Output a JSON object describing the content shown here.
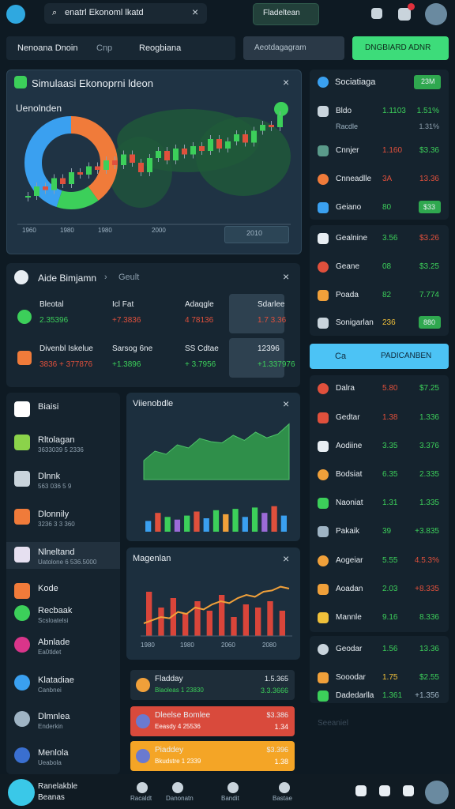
{
  "top_bar": {
    "search": "enatrl Ekonoml lkatd",
    "button": "Fladeltean"
  },
  "tabs": {
    "items": [
      "Nenoana Dnoin",
      "Cnp",
      "Reogbiana"
    ],
    "input": "Aeotdagagram",
    "button": "DNGBIARD ADNR"
  },
  "main_panel": {
    "title": "Simulaasi Ekonoprni ldeon",
    "subtitle": "Uenolnden",
    "donut": {
      "values": [
        40,
        15,
        45
      ],
      "colors": [
        "#f07b3a",
        "#3ccf5a",
        "#3aa0f0"
      ]
    },
    "candles": {
      "values": [
        20,
        28,
        25,
        35,
        30,
        40,
        38,
        45,
        42,
        50,
        46,
        55,
        48,
        40,
        52,
        58,
        50,
        60,
        55,
        62,
        58,
        68,
        60,
        66,
        72,
        65,
        75,
        80,
        78,
        88
      ],
      "ylim": [
        0,
        100
      ],
      "up_color": "#3ccf5a",
      "down_color": "#e0503c"
    },
    "x_labels": [
      "1960",
      "1980",
      "1980",
      "2000"
    ],
    "button": "2010"
  },
  "market_panel": {
    "title": "Aide Bimjamn",
    "tab": "Geult",
    "cells": [
      {
        "name": "Bleotal",
        "value": "2.35396",
        "color": "#3ccf5a"
      },
      {
        "name": "Icl Fat",
        "value": "+7.3836",
        "color": "#e0503c"
      },
      {
        "name": "Adaqgle",
        "value": "4 78136",
        "color": "#e0503c"
      },
      {
        "name": "Sdarlee",
        "value": "1.7 3.36",
        "color": "#e0503c"
      },
      {
        "name": "Divenbl Iskelue",
        "value": "3836 + 377876",
        "color": "#e0503c"
      },
      {
        "name": "Sarsog 6ne",
        "value": "+1.3896",
        "color": "#3ccf5a"
      },
      {
        "name": "SS Cdtae",
        "value": "+ 3.7956",
        "color": "#3ccf5a"
      },
      {
        "name": "12396",
        "value": "+1.337976",
        "color": "#3ccf5a"
      }
    ]
  },
  "left_list": [
    {
      "title": "Biaisi",
      "color": "#ffffff"
    },
    {
      "title": "Rltolagan",
      "sub": "3633039 5 2336",
      "color": "#8bd34a"
    },
    {
      "title": "Dlnnk",
      "sub": "563 036 5 9",
      "color": "#c9d4dc"
    },
    {
      "title": "Dlonnily",
      "sub": "3236 3 3 360",
      "color": "#f07b3a"
    },
    {
      "title": "Nlneltand",
      "sub": "Uatolone 6 536.5000",
      "color": "#e6e0f0"
    },
    {
      "title": "Kode",
      "color": "#f07b3a"
    },
    {
      "title": "Recbaak",
      "sub": "Scsloatelsi",
      "color": "#3ccf5a"
    },
    {
      "title": "Abnlade",
      "sub": "Ea0tldet",
      "color": "#d9358a"
    },
    {
      "title": "Klatadiae",
      "sub": "Canbnei",
      "color": "#3aa0f0"
    },
    {
      "title": "Dlmnlea",
      "sub": "Enderkin",
      "color": "#9fb4c4"
    },
    {
      "title": "Menlola",
      "sub": "Ueabola",
      "color": "#3a6fd0"
    }
  ],
  "area_panel": {
    "title": "Viienobdle",
    "area": {
      "values": [
        30,
        45,
        40,
        55,
        50,
        65,
        60,
        58,
        70,
        62,
        75,
        66,
        72,
        88
      ],
      "ylim": [
        0,
        100
      ],
      "color": "#2f8f4a"
    },
    "bars": {
      "values": [
        40,
        70,
        55,
        45,
        60,
        75,
        50,
        80,
        65,
        85,
        55,
        90,
        70,
        95,
        60
      ],
      "ylim": [
        0,
        100
      ],
      "colors": [
        "#3aa0f0",
        "#e0503c",
        "#3ccf5a",
        "#9b6bd8",
        "#3ccf5a",
        "#e0503c",
        "#3aa0f0",
        "#3ccf5a",
        "#f0a03a",
        "#3ccf5a",
        "#3aa0f0",
        "#3ccf5a",
        "#9b6bd8",
        "#e0503c",
        "#3aa0f0"
      ]
    }
  },
  "line_panel": {
    "title": "Magenlan",
    "line": {
      "values": [
        20,
        25,
        30,
        28,
        38,
        35,
        45,
        42,
        50,
        55,
        52,
        60,
        65,
        62,
        70,
        72,
        78,
        75
      ],
      "ylim": [
        0,
        100
      ],
      "color": "#f0a03a"
    },
    "spikes": {
      "values": [
        70,
        45,
        60,
        35,
        55,
        40,
        65,
        30,
        50,
        45,
        55,
        40
      ],
      "ylim": [
        0,
        100
      ],
      "color": "#d9453a"
    },
    "x_labels": [
      "1980",
      "1980",
      "2060",
      "2080"
    ]
  },
  "cards": [
    {
      "title": "Fladday",
      "sub": "Blaoleas 1 23830",
      "v1": "1.5.365",
      "v2": "3.3.3666",
      "color": "#1e2d39"
    },
    {
      "title": "Dleelse Bomlee",
      "sub": "Eeasdy 4 25536",
      "v1": "$3.386",
      "v2": "1.34",
      "color": "#d94a3c"
    },
    {
      "title": "Piaddey",
      "sub": "Bkudstre 1 2339",
      "v1": "$3.396",
      "v2": "1.38",
      "color": "#f4a526"
    }
  ],
  "right_column": {
    "title": "Sociatiaga",
    "badge": "23M",
    "highlight": {
      "name": "Ca",
      "label": "PADICANBEN"
    },
    "items": [
      {
        "name": "Bldo",
        "v1": "1.1103",
        "v2": "1.51%",
        "c1": "#3ccf5a",
        "c2": "#3ccf5a",
        "sub": "Racdle",
        "sub_value": "1.31%"
      },
      {
        "name": "Cnnjer",
        "v1": "1.160",
        "v2": "$3.36",
        "c1": "#e0503c",
        "c2": "#3ccf5a"
      },
      {
        "name": "Cnneadlle",
        "v1": "3A",
        "v2": "13.36",
        "c1": "#e0503c",
        "c2": "#e0503c"
      },
      {
        "name": "Geiano",
        "v1": "80",
        "badge": "$33",
        "c1": "#3ccf5a"
      },
      {
        "name": "Gealnine",
        "v1": "3.56",
        "v2": "$3.26",
        "c1": "#3ccf5a",
        "c2": "#e0503c"
      },
      {
        "name": "Geane",
        "v1": "08",
        "v2": "$3.25",
        "c1": "#3ccf5a",
        "c2": "#3ccf5a"
      },
      {
        "name": "Poada",
        "v1": "82",
        "v2": "7.774",
        "c1": "#3ccf5a",
        "c2": "#3ccf5a"
      },
      {
        "name": "Sonigarlan",
        "v1": "236",
        "badge": "880",
        "c1": "#f0c03a"
      },
      {
        "name": "Dalra",
        "v1": "5.80",
        "v2": "$7.25",
        "c1": "#e0503c",
        "c2": "#3ccf5a"
      },
      {
        "name": "Gedtar",
        "v1": "1.38",
        "v2": "1.336",
        "c1": "#e0503c",
        "c2": "#3ccf5a"
      },
      {
        "name": "Aodiine",
        "v1": "3.35",
        "v2": "3.376",
        "c1": "#3ccf5a",
        "c2": "#3ccf5a"
      },
      {
        "name": "Bodsiat",
        "v1": "6.35",
        "v2": "2.335",
        "c1": "#3ccf5a",
        "c2": "#3ccf5a"
      },
      {
        "name": "Naoniat",
        "v1": "1.31",
        "v2": "1.335",
        "c1": "#3ccf5a",
        "c2": "#3ccf5a"
      },
      {
        "name": "Pakaik",
        "v1": "39",
        "v2": "+3.835",
        "c1": "#3ccf5a",
        "c2": "#3ccf5a"
      },
      {
        "name": "Aogeiar",
        "v1": "5.55",
        "v2": "4.5.3%",
        "c1": "#3ccf5a",
        "c2": "#e0503c"
      },
      {
        "name": "Aoadan",
        "v1": "2.03",
        "v2": "+8.335",
        "c1": "#3ccf5a",
        "c2": "#e0503c"
      },
      {
        "name": "Mannle",
        "v1": "9.16",
        "v2": "8.336",
        "c1": "#3ccf5a",
        "c2": "#3ccf5a"
      },
      {
        "name": "Geodar",
        "v1": "1.56",
        "v2": "13.36",
        "c1": "#3ccf5a",
        "c2": "#3ccf5a"
      },
      {
        "name": "Sooodar",
        "v1": "1.75",
        "v2": "$2.55",
        "c1": "#f0c03a",
        "c2": "#3ccf5a"
      },
      {
        "name": "Dadedarlla",
        "v1": "1.361",
        "v2": "+1.356",
        "c1": "#3ccf5a",
        "c2": "#9fb4c4"
      }
    ],
    "faded": "Seeaniel"
  },
  "bottom_nav": {
    "brand": [
      "Ranelakble",
      "Beanas"
    ],
    "items": [
      "Racaldt",
      "Danonatn",
      "Bandit",
      "Bastae"
    ]
  }
}
